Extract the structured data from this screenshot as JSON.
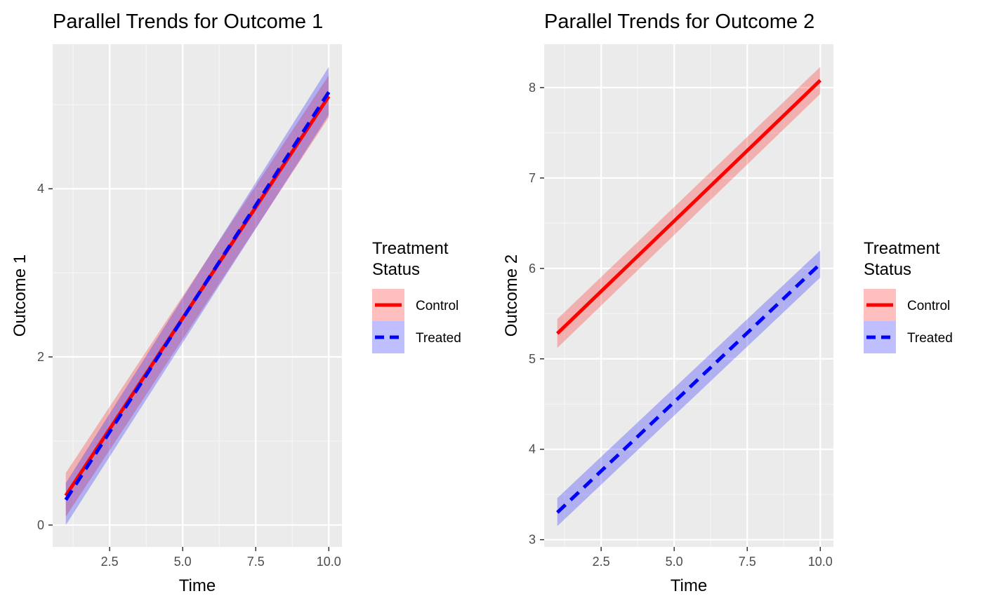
{
  "colors": {
    "panel": "#EBEBEB",
    "grid_major": "#FFFFFF",
    "grid_minor": "#F5F5F5",
    "control": "#FF0000",
    "treated": "#0000FF",
    "tick_text": "#4D4D4D",
    "axis_text": "#000000"
  },
  "chart_data": [
    {
      "type": "line",
      "title": "Parallel Trends for Outcome 1",
      "xlabel": "Time",
      "ylabel": "Outcome 1",
      "xlim": [
        0.55,
        10.45
      ],
      "ylim": [
        -0.26,
        5.72
      ],
      "x_ticks": [
        2.5,
        5.0,
        7.5,
        10.0
      ],
      "x_tick_labels": [
        "2.5",
        "5.0",
        "7.5",
        "10.0"
      ],
      "y_ticks": [
        0,
        2,
        4
      ],
      "y_tick_labels": [
        "0",
        "2",
        "4"
      ],
      "grid": true,
      "legend": {
        "title": [
          "Treatment",
          "Status"
        ],
        "placement": "right",
        "entries": [
          "Control",
          "Treated"
        ]
      },
      "series": [
        {
          "name": "Control",
          "color": "#FF0000",
          "linestyle": "solid",
          "x": [
            1,
            10
          ],
          "y": [
            0.35,
            5.1
          ],
          "band_lower": [
            0.1,
            4.85
          ],
          "band_upper": [
            0.62,
            5.35
          ]
        },
        {
          "name": "Treated",
          "color": "#0000FF",
          "linestyle": "dashed",
          "x": [
            1,
            10
          ],
          "y": [
            0.3,
            5.15
          ],
          "band_lower": [
            0.0,
            4.88
          ],
          "band_upper": [
            0.5,
            5.45
          ]
        }
      ]
    },
    {
      "type": "line",
      "title": "Parallel Trends for Outcome 2",
      "xlabel": "Time",
      "ylabel": "Outcome 2",
      "xlim": [
        0.55,
        10.45
      ],
      "ylim": [
        2.92,
        8.48
      ],
      "x_ticks": [
        2.5,
        5.0,
        7.5,
        10.0
      ],
      "x_tick_labels": [
        "2.5",
        "5.0",
        "7.5",
        "10.0"
      ],
      "y_ticks": [
        3,
        4,
        5,
        6,
        7,
        8
      ],
      "y_tick_labels": [
        "3",
        "4",
        "5",
        "6",
        "7",
        "8"
      ],
      "grid": true,
      "legend": {
        "title": [
          "Treatment",
          "Status"
        ],
        "placement": "right",
        "entries": [
          "Control",
          "Treated"
        ]
      },
      "series": [
        {
          "name": "Control",
          "color": "#FF0000",
          "linestyle": "solid",
          "x": [
            1,
            10
          ],
          "y": [
            5.28,
            8.08
          ],
          "band_lower": [
            5.12,
            7.93
          ],
          "band_upper": [
            5.44,
            8.23
          ]
        },
        {
          "name": "Treated",
          "color": "#0000FF",
          "linestyle": "dashed",
          "x": [
            1,
            10
          ],
          "y": [
            3.3,
            6.05
          ],
          "band_lower": [
            3.15,
            5.9
          ],
          "band_upper": [
            3.46,
            6.2
          ]
        }
      ]
    }
  ]
}
